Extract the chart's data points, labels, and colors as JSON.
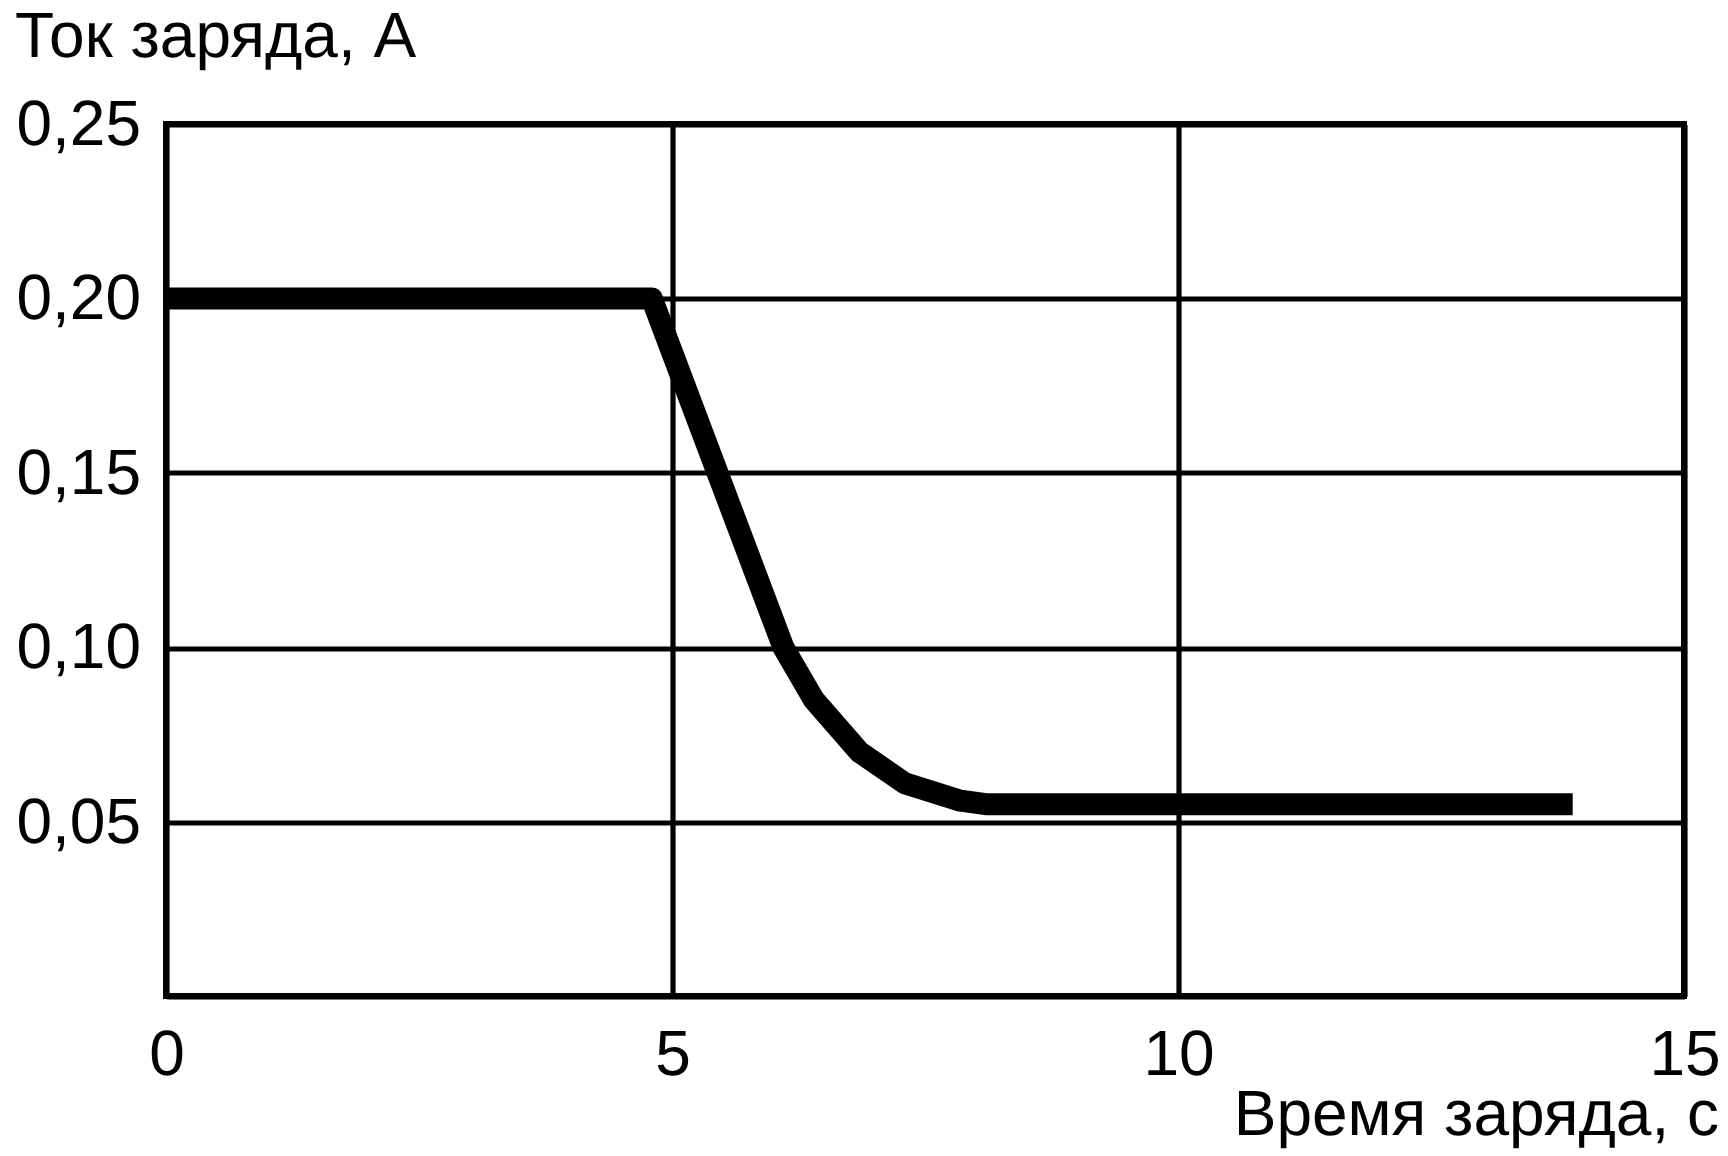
{
  "chart_data": {
    "type": "line",
    "xlabel": "Время заряда, с",
    "ylabel": "Ток заряда, А",
    "x": [
      0,
      4.8,
      5.45,
      6.1,
      6.4,
      6.85,
      7.3,
      7.85,
      8.1,
      13.9
    ],
    "series": [
      {
        "color": "#000000",
        "values": [
          0.2,
          0.2,
          0.15,
          0.1,
          0.085,
          0.07,
          0.061,
          0.056,
          0.055,
          0.055
        ]
      }
    ],
    "xlim": [
      0,
      15
    ],
    "xticks": [
      0,
      5,
      10,
      15
    ],
    "ylim": [
      0,
      0.25
    ],
    "yticks": [
      {
        "value": 0,
        "label": null
      },
      {
        "value": 0.05,
        "label": "0,05"
      },
      {
        "value": 0.1,
        "label": "0,10"
      },
      {
        "value": 0.15,
        "label": "0,15"
      },
      {
        "value": 0.2,
        "label": "0,20"
      },
      {
        "value": 0.25,
        "label": "0,25"
      }
    ],
    "grid": true,
    "marker": "none",
    "line_style": "solid"
  }
}
